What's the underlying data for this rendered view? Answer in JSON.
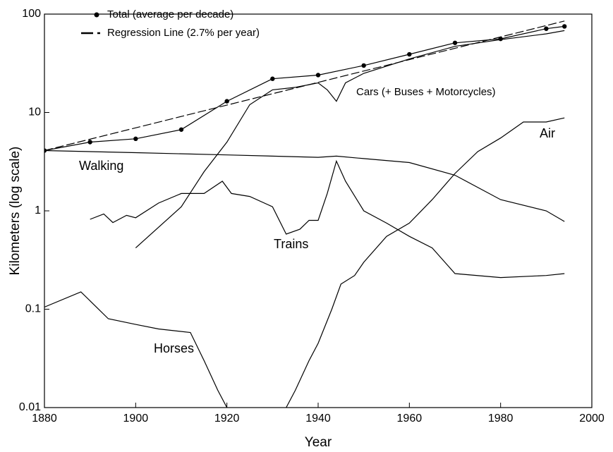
{
  "chart_data": {
    "type": "line",
    "xlabel": "Year",
    "ylabel": "Kilometers (log scale)",
    "xlim": [
      1880,
      2000
    ],
    "ylim": [
      0.01,
      100
    ],
    "log_y": true,
    "xticks": [
      1880,
      1900,
      1920,
      1940,
      1960,
      1980,
      2000
    ],
    "yticks": [
      0.01,
      0.1,
      1,
      10,
      100
    ],
    "legend": "upper left",
    "series": [
      {
        "name": "Total (average per decade)",
        "color": "#000",
        "marker": "circle",
        "in_legend": true,
        "x": [
          1880,
          1890,
          1900,
          1910,
          1920,
          1930,
          1940,
          1950,
          1960,
          1970,
          1980,
          1990,
          1994
        ],
        "values": [
          4.1,
          5.0,
          5.4,
          6.7,
          13,
          22,
          24,
          30,
          39,
          51,
          56,
          71,
          75
        ]
      },
      {
        "name": "Regression Line (2.7% per year)",
        "color": "#000",
        "dashed": true,
        "in_legend": true,
        "x": [
          1880,
          1994
        ],
        "values": [
          4.1,
          85
        ]
      },
      {
        "name": "Cars (+ Buses + Motorcycles)",
        "color": "#000",
        "x": [
          1900,
          1910,
          1915,
          1920,
          1925,
          1930,
          1935,
          1940,
          1942,
          1944,
          1946,
          1950,
          1960,
          1970,
          1980,
          1990,
          1994
        ],
        "values": [
          0.42,
          1.1,
          2.5,
          5,
          12,
          17,
          18,
          20,
          17,
          13,
          20,
          25,
          35,
          47,
          55,
          63,
          68
        ]
      },
      {
        "name": "Walking",
        "color": "#000",
        "x": [
          1880,
          1900,
          1920,
          1940,
          1944,
          1950,
          1960,
          1970,
          1980,
          1990,
          1994
        ],
        "values": [
          4.1,
          3.9,
          3.7,
          3.5,
          3.6,
          3.4,
          3.1,
          2.3,
          1.3,
          1.0,
          0.78
        ]
      },
      {
        "name": "Trains",
        "color": "#000",
        "x": [
          1890,
          1893,
          1895,
          1898,
          1900,
          1905,
          1910,
          1915,
          1919,
          1921,
          1925,
          1930,
          1933,
          1936,
          1938,
          1940,
          1942,
          1944,
          1946,
          1950,
          1955,
          1960,
          1965,
          1970,
          1980,
          1990,
          1994
        ],
        "values": [
          0.82,
          0.93,
          0.76,
          0.9,
          0.85,
          1.2,
          1.5,
          1.5,
          2.0,
          1.5,
          1.4,
          1.1,
          0.58,
          0.65,
          0.8,
          0.8,
          1.5,
          3.2,
          2.0,
          1.0,
          0.75,
          0.55,
          0.42,
          0.23,
          0.21,
          0.22,
          0.23
        ]
      },
      {
        "name": "Horses",
        "color": "#000",
        "x": [
          1880,
          1888,
          1894,
          1900,
          1905,
          1912,
          1915,
          1918,
          1920
        ],
        "values": [
          0.105,
          0.15,
          0.08,
          0.07,
          0.063,
          0.058,
          0.03,
          0.015,
          0.01
        ]
      },
      {
        "name": "Air",
        "color": "#000",
        "x": [
          1933,
          1935,
          1938,
          1940,
          1943,
          1945,
          1948,
          1950,
          1955,
          1960,
          1965,
          1970,
          1975,
          1980,
          1985,
          1990,
          1994
        ],
        "values": [
          0.01,
          0.015,
          0.03,
          0.045,
          0.1,
          0.18,
          0.22,
          0.3,
          0.55,
          0.75,
          1.3,
          2.4,
          4,
          5.5,
          8,
          8,
          8.8
        ]
      }
    ]
  }
}
